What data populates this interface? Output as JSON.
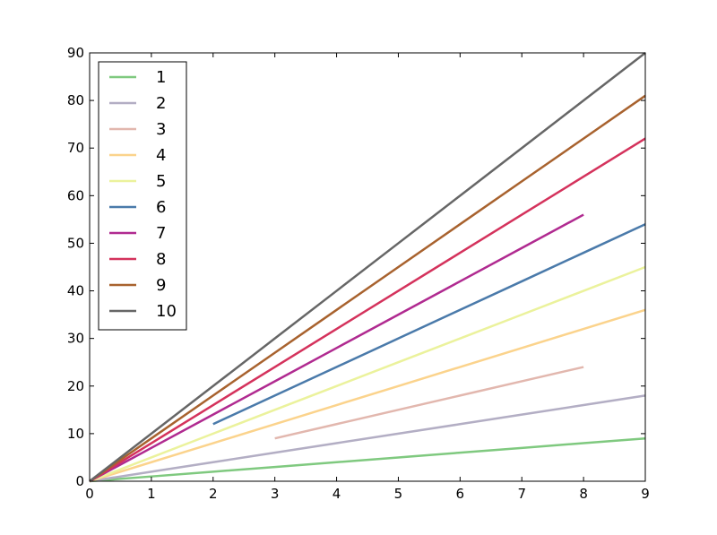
{
  "chart_data": {
    "type": "line",
    "x": [
      0,
      1,
      2,
      3,
      4,
      5,
      6,
      7,
      8,
      9
    ],
    "xlim": [
      0,
      9
    ],
    "xticks": [
      0,
      1,
      2,
      3,
      4,
      5,
      6,
      7,
      8,
      9
    ],
    "ylim": [
      0,
      90
    ],
    "yticks": [
      0,
      10,
      20,
      30,
      40,
      50,
      60,
      70,
      80,
      90
    ],
    "legend": "upper left",
    "grid": false,
    "series": [
      {
        "name": "1",
        "color": "#7fc97f",
        "values": [
          0,
          1,
          2,
          3,
          4,
          5,
          6,
          7,
          8,
          9
        ]
      },
      {
        "name": "2",
        "color": "#b3aec4",
        "values": [
          0,
          2,
          4,
          6,
          8,
          10,
          12,
          14,
          16,
          18
        ]
      },
      {
        "name": "3",
        "color": "#e2b7ae",
        "values": [
          null,
          null,
          null,
          9,
          12,
          15,
          18,
          21,
          24,
          null
        ]
      },
      {
        "name": "4",
        "color": "#fbd38c",
        "values": [
          0,
          4,
          8,
          12,
          16,
          20,
          24,
          28,
          32,
          36
        ]
      },
      {
        "name": "5",
        "color": "#ebf29c",
        "values": [
          0,
          5,
          10,
          15,
          20,
          25,
          30,
          35,
          40,
          45
        ]
      },
      {
        "name": "6",
        "color": "#4a7aaa",
        "values": [
          null,
          null,
          12,
          18,
          24,
          30,
          36,
          42,
          48,
          54
        ]
      },
      {
        "name": "7",
        "color": "#b02a90",
        "values": [
          0,
          7,
          14,
          21,
          28,
          35,
          42,
          49,
          56,
          null
        ]
      },
      {
        "name": "8",
        "color": "#d4325c",
        "values": [
          0,
          8,
          16,
          24,
          32,
          40,
          48,
          56,
          64,
          72
        ]
      },
      {
        "name": "9",
        "color": "#a8622e",
        "values": [
          0,
          9,
          18,
          27,
          36,
          45,
          54,
          63,
          72,
          81
        ]
      },
      {
        "name": "10",
        "color": "#666666",
        "values": [
          0,
          10,
          20,
          30,
          40,
          50,
          60,
          70,
          80,
          90
        ]
      }
    ]
  }
}
